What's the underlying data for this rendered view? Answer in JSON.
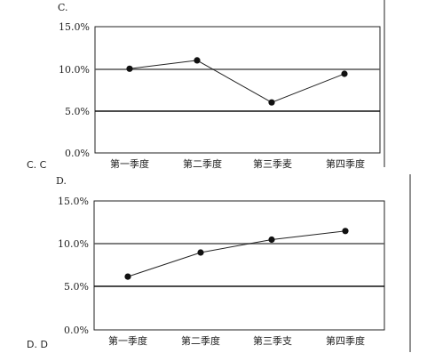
{
  "options": [
    {
      "panel_label": "C.",
      "option_text": "C. C"
    },
    {
      "panel_label": "D.",
      "option_text": "D. D"
    }
  ],
  "chart_data": [
    {
      "type": "line",
      "categories": [
        "第一季度",
        "第二季度",
        "第三季麦",
        "第四季度"
      ],
      "values": [
        10.0,
        11.0,
        6.0,
        9.4
      ],
      "ylim": [
        0,
        15
      ],
      "yticks": [
        "15.0%",
        "10.0%",
        "5.0%",
        "0.0%"
      ],
      "grid": "horizontal"
    },
    {
      "type": "line",
      "categories": [
        "第一季度",
        "第二季度",
        "第三季支",
        "第四季度"
      ],
      "values": [
        6.2,
        9.0,
        10.5,
        11.5
      ],
      "ylim": [
        0,
        15
      ],
      "yticks": [
        "15.0%",
        "10.0%",
        "5.0%",
        "0.0%"
      ],
      "grid": "horizontal"
    }
  ]
}
